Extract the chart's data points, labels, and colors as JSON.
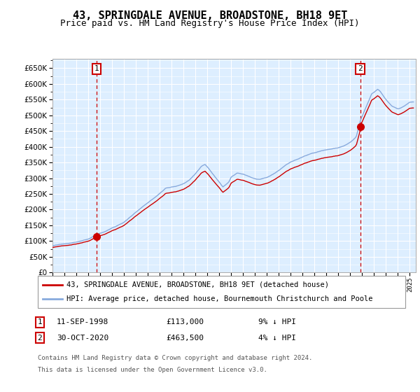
{
  "title": "43, SPRINGDALE AVENUE, BROADSTONE, BH18 9ET",
  "subtitle": "Price paid vs. HM Land Registry's House Price Index (HPI)",
  "ylim": [
    0,
    680000
  ],
  "yticks": [
    0,
    50000,
    100000,
    150000,
    200000,
    250000,
    300000,
    350000,
    400000,
    450000,
    500000,
    550000,
    600000,
    650000
  ],
  "xmin": 1995.0,
  "xmax": 2025.5,
  "sale1_year": 1998.7,
  "sale1_price": 113000,
  "sale2_year": 2020.83,
  "sale2_price": 463500,
  "legend_line1": "43, SPRINGDALE AVENUE, BROADSTONE, BH18 9ET (detached house)",
  "legend_line2": "HPI: Average price, detached house, Bournemouth Christchurch and Poole",
  "footnote1": "Contains HM Land Registry data © Crown copyright and database right 2024.",
  "footnote2": "This data is licensed under the Open Government Licence v3.0.",
  "line_color_red": "#cc0000",
  "line_color_blue": "#88aadd",
  "bg_color": "#ddeeff",
  "grid_color": "#ffffff",
  "sale_dot_color": "#cc0000",
  "box_border_color": "#cc0000",
  "title_fontsize": 11,
  "subtitle_fontsize": 9
}
